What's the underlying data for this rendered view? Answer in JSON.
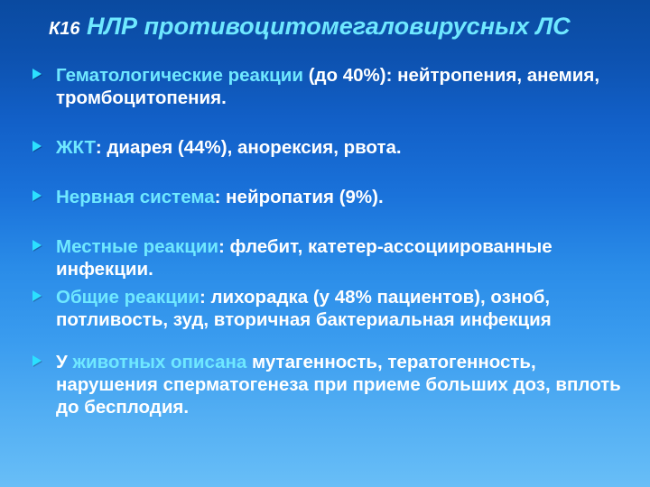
{
  "colors": {
    "highlight": "#6fe8ff",
    "text": "#ffffff",
    "bullet": "#2be0ff",
    "bg_top": "#0a4aa0",
    "bg_bottom": "#68bef7"
  },
  "typography": {
    "title_prefix_fontsize_pt": 15,
    "title_main_fontsize_pt": 20,
    "body_fontsize_pt": 16,
    "font_family": "Arial",
    "title_italic": true,
    "body_bold": true
  },
  "title": {
    "prefix": "К16",
    "main": "НЛР  противоцитомегаловирусных ЛС"
  },
  "bullets": [
    {
      "lead": "Гематологические реакции ",
      "rest": "(до 40%): нейтропения, анемия, тромбоцитопения.",
      "gap": "lg"
    },
    {
      "lead": "ЖКТ",
      "rest": ": диарея (44%), анорексия, рвота.",
      "gap": "lg"
    },
    {
      "lead": "Нервная система",
      "rest": ": нейропатия (9%).",
      "gap": "lg"
    },
    {
      "lead": "Местные реакции",
      "rest": ": флебит, катетер-ассоциированные инфекции.",
      "gap": "sm"
    },
    {
      "lead": "Общие реакции",
      "rest": ": лихорадка (у 48% пациентов), озноб, потливость, зуд, вторичная бактериальная инфекция",
      "gap": "md"
    },
    {
      "lead_plain": "У ",
      "lead": "животных описана",
      "rest": " мутагенность, тератогенность, нарушения сперматогенеза при приеме больших доз, вплоть до бесплодия.",
      "gap": "sm"
    }
  ]
}
